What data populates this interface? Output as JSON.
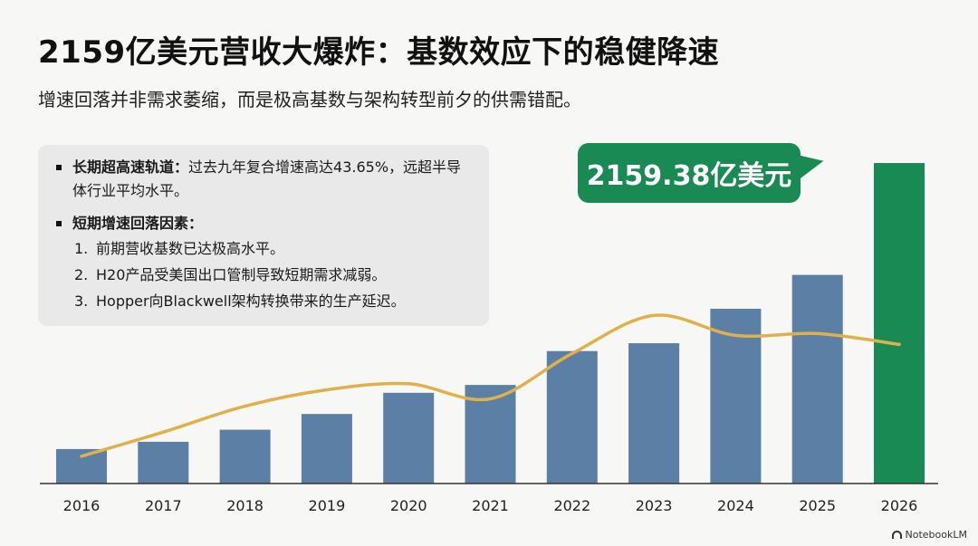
{
  "header": {
    "title": "2159亿美元营收大爆炸：基数效应下的稳健降速",
    "subtitle": "增速回落并非需求萎缩，而是极高基数与架构转型前夕的供需错配。"
  },
  "info_box": {
    "section1_title": "长期超高速轨道：",
    "section1_text": "过去九年复合增速高达43.65%，远超半导体行业平均水平。",
    "section2_title": "短期增速回落因素：",
    "items": [
      {
        "num": "1.",
        "text": "前期营收基数已达极高水平。"
      },
      {
        "num": "2.",
        "text": "H20产品受美国出口管制导致短期需求减弱。"
      },
      {
        "num": "3.",
        "text": "Hopper向Blackwell架构转换带来的生产延迟。"
      }
    ]
  },
  "callout": {
    "label": "2159.38亿美元"
  },
  "brand": {
    "label": "NotebookLM"
  },
  "colors": {
    "bar": "#5b7fa5",
    "highlight_bar": "#1a8a55",
    "line": "#e0b14a",
    "axis": "#333333"
  },
  "chart_data": {
    "type": "bar",
    "categories": [
      "2016",
      "2017",
      "2018",
      "2019",
      "2020",
      "2021",
      "2022",
      "2023",
      "2024",
      "2025",
      "2026"
    ],
    "series": [
      {
        "values": [
          57,
          69,
          89,
          115,
          150,
          163,
          219,
          232,
          289,
          345,
          530
        ]
      },
      {
        "type": "line",
        "values": [
          45,
          85,
          128,
          155,
          165,
          140,
          215,
          278,
          245,
          248,
          230
        ]
      }
    ],
    "highlight_index": 10,
    "ylim": [
      0,
      560
    ],
    "grid": false,
    "xlabel": "",
    "ylabel": ""
  }
}
